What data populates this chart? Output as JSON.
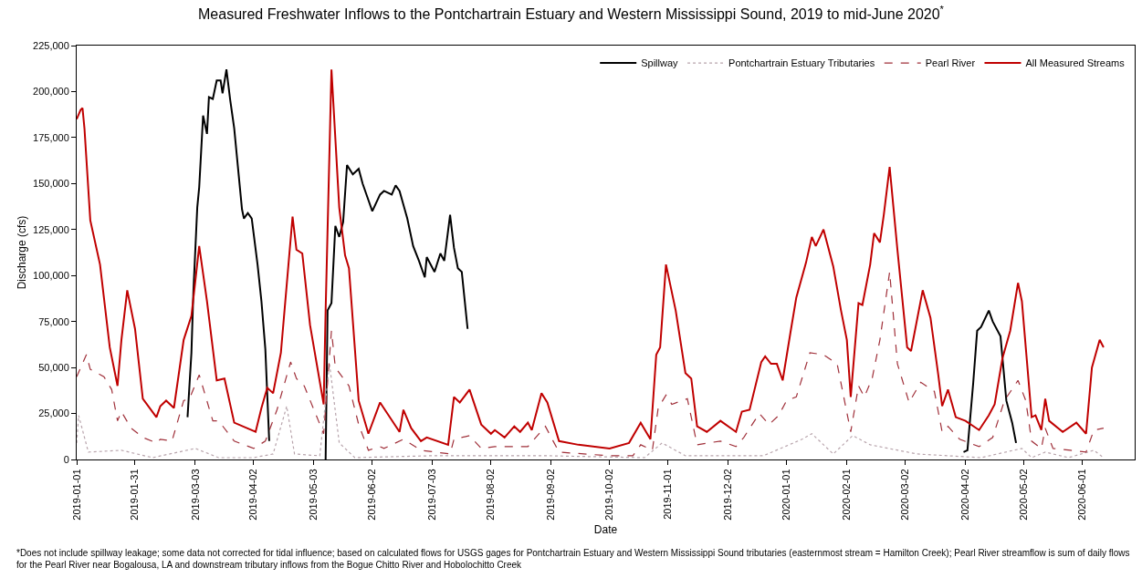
{
  "chart_data": {
    "type": "line",
    "title": "Measured Freshwater Inflows to the Pontchartrain Estuary and Western Mississippi Sound, 2019 to mid-June 2020$^{*}$",
    "xlabel": "Date",
    "ylabel": "Discharge (cfs)",
    "xlim": [
      "2019-01-01",
      "2020-06-28"
    ],
    "xticks": [
      "2019-01-01",
      "2019-01-31",
      "2019-03-03",
      "2019-04-02",
      "2019-05-03",
      "2019-06-02",
      "2019-07-03",
      "2019-08-02",
      "2019-09-02",
      "2019-10-02",
      "2019-11-01",
      "2019-12-02",
      "2020-01-01",
      "2020-02-01",
      "2020-03-02",
      "2020-04-02",
      "2020-05-02",
      "2020-06-01"
    ],
    "ylim": [
      0,
      225000
    ],
    "yticks": [
      {
        "value": 0,
        "label": "0"
      },
      {
        "value": 25000,
        "label": "25,000"
      },
      {
        "value": 50000,
        "label": "50,000"
      },
      {
        "value": 75000,
        "label": "75,000"
      },
      {
        "value": 100000,
        "label": "100,000"
      },
      {
        "value": 125000,
        "label": "125,000"
      },
      {
        "value": 150000,
        "label": "150,000"
      },
      {
        "value": 175000,
        "label": "175,000"
      },
      {
        "value": 200000,
        "label": "200,000"
      },
      {
        "value": 225000,
        "label": "225,000"
      }
    ],
    "grid": false,
    "legend": "top right",
    "annotations": [
      "*Does not include spillway leakage; some data not corrected for tidal influence; based on calculated flows for USGS gages for Pontchartrain Estuary and Western Mississippi Sound tributaries (easternmost stream = Hamilton Creek); Pearl River streamflow is sum of daily flows for the Pearl River near Bogalousa, LA and downstream tributary inflows from the Bogue Chitto River and Hobolochitto Creek"
    ],
    "series": [
      {
        "name": "Spillway",
        "color": "#000000",
        "line_style": "solid",
        "x": [
          "2019-02-27",
          "2019-03-01",
          "2019-03-02",
          "2019-03-04",
          "2019-03-05",
          "2019-03-07",
          "2019-03-09",
          "2019-03-10",
          "2019-03-12",
          "2019-03-14",
          "2019-03-16",
          "2019-03-17",
          "2019-03-19",
          "2019-03-21",
          "2019-03-23",
          "2019-03-27",
          "2019-03-28",
          "2019-03-30",
          "2019-04-01",
          "2019-04-04",
          "2019-04-06",
          "2019-04-08",
          "2019-04-10",
          "2019-04-25",
          "2019-05-09",
          "2019-05-10",
          "2019-05-12",
          "2019-05-14",
          "2019-05-16",
          "2019-05-18",
          "2019-05-20",
          "2019-05-23",
          "2019-05-26",
          "2019-05-28",
          "2019-05-31",
          "2019-06-02",
          "2019-06-06",
          "2019-06-08",
          "2019-06-12",
          "2019-06-14",
          "2019-06-16",
          "2019-06-20",
          "2019-06-23",
          "2019-06-26",
          "2019-06-29",
          "2019-06-30",
          "2019-07-04",
          "2019-07-07",
          "2019-07-09",
          "2019-07-12",
          "2019-07-14",
          "2019-07-16",
          "2019-07-18",
          "2019-07-21",
          "2019-12-01",
          "2020-04-01",
          "2020-04-03",
          "2020-04-06",
          "2020-04-08",
          "2020-04-10",
          "2020-04-14",
          "2020-04-16",
          "2020-04-20",
          "2020-04-23",
          "2020-04-26",
          "2020-04-28"
        ],
        "values": [
          23000,
          58000,
          91000,
          137000,
          148000,
          187000,
          177000,
          197000,
          196000,
          206000,
          206000,
          199000,
          212000,
          195000,
          180000,
          136000,
          131000,
          134000,
          131000,
          106000,
          86000,
          60000,
          10000,
          null,
          0,
          81000,
          85000,
          127000,
          121000,
          129000,
          160000,
          155000,
          158000,
          150000,
          141000,
          135000,
          144000,
          146000,
          144000,
          149000,
          146000,
          131000,
          116000,
          108000,
          99000,
          110000,
          102000,
          112000,
          108000,
          133000,
          115000,
          104000,
          102000,
          71000,
          null,
          4000,
          5000,
          42000,
          70000,
          72000,
          81000,
          75000,
          67000,
          32000,
          20000,
          9000
        ]
      },
      {
        "name": "Pontchartrain Estuary Tributaries",
        "color": "#b8a4ac",
        "line_style": "dotted",
        "x": [
          "2019-01-01",
          "2019-01-02",
          "2019-01-07",
          "2019-01-24",
          "2019-02-09",
          "2019-03-03",
          "2019-03-15",
          "2019-04-02",
          "2019-04-12",
          "2019-04-19",
          "2019-04-23",
          "2019-05-06",
          "2019-05-11",
          "2019-05-16",
          "2019-05-24",
          "2019-07-01",
          "2019-09-01",
          "2019-10-20",
          "2019-10-29",
          "2019-11-10",
          "2019-12-20",
          "2020-01-09",
          "2020-01-14",
          "2020-01-25",
          "2020-02-04",
          "2020-02-13",
          "2020-03-08",
          "2020-04-10",
          "2020-05-01",
          "2020-05-06",
          "2020-05-13",
          "2020-05-25",
          "2020-06-07",
          "2020-06-12"
        ],
        "values": [
          9000,
          24000,
          4000,
          5000,
          1000,
          6000,
          1000,
          1000,
          3000,
          29000,
          3000,
          2000,
          52000,
          9000,
          1000,
          2000,
          2000,
          1000,
          9000,
          2000,
          2000,
          11000,
          14000,
          3000,
          13000,
          8000,
          3000,
          1000,
          6000,
          1000,
          4000,
          1000,
          5000,
          1000
        ]
      },
      {
        "name": "Pearl River",
        "color": "#a0303a",
        "line_style": "dashed",
        "x": [
          "2019-01-01",
          "2019-01-06",
          "2019-01-08",
          "2019-01-15",
          "2019-01-19",
          "2019-01-22",
          "2019-01-24",
          "2019-01-29",
          "2019-02-04",
          "2019-02-11",
          "2019-02-13",
          "2019-02-19",
          "2019-02-25",
          "2019-02-28",
          "2019-03-05",
          "2019-03-12",
          "2019-03-15",
          "2019-03-23",
          "2019-04-02",
          "2019-04-08",
          "2019-04-14",
          "2019-04-21",
          "2019-04-24",
          "2019-04-28",
          "2019-05-08",
          "2019-05-12",
          "2019-05-14",
          "2019-05-21",
          "2019-05-26",
          "2019-05-31",
          "2019-06-06",
          "2019-06-08",
          "2019-06-18",
          "2019-06-27",
          "2019-07-12",
          "2019-07-14",
          "2019-07-22",
          "2019-07-28",
          "2019-08-04",
          "2019-08-21",
          "2019-08-30",
          "2019-09-06",
          "2019-10-02",
          "2019-10-14",
          "2019-10-18",
          "2019-10-24",
          "2019-10-27",
          "2019-10-31",
          "2019-11-03",
          "2019-11-11",
          "2019-11-16",
          "2019-11-28",
          "2019-12-06",
          "2019-12-10",
          "2019-12-18",
          "2019-12-23",
          "2019-12-28",
          "2020-01-01",
          "2020-01-06",
          "2020-01-13",
          "2020-01-20",
          "2020-01-27",
          "2020-02-03",
          "2020-02-07",
          "2020-02-10",
          "2020-02-14",
          "2020-02-18",
          "2020-02-23",
          "2020-02-27",
          "2020-03-04",
          "2020-03-10",
          "2020-03-17",
          "2020-03-21",
          "2020-03-24",
          "2020-03-30",
          "2020-04-09",
          "2020-04-16",
          "2020-04-22",
          "2020-04-29",
          "2020-05-03",
          "2020-05-06",
          "2020-05-11",
          "2020-05-13",
          "2020-05-17",
          "2020-05-26",
          "2020-06-03",
          "2020-06-07",
          "2020-06-12"
        ],
        "values": [
          45000,
          57000,
          49000,
          45000,
          38000,
          21000,
          26000,
          17000,
          12000,
          9000,
          11000,
          10000,
          32000,
          33000,
          46000,
          21000,
          21000,
          10000,
          6000,
          10000,
          27000,
          53000,
          44000,
          40000,
          14000,
          70000,
          50000,
          40000,
          19000,
          5000,
          7000,
          6000,
          11000,
          5000,
          3000,
          11000,
          13000,
          6000,
          7000,
          7000,
          18000,
          4000,
          2000,
          2000,
          8000,
          5000,
          28000,
          35000,
          30000,
          33000,
          8000,
          10000,
          7000,
          12000,
          25000,
          19000,
          24000,
          32000,
          34000,
          58000,
          57000,
          52000,
          15000,
          40000,
          34000,
          44000,
          65000,
          102000,
          52000,
          31000,
          42000,
          37000,
          15000,
          18000,
          11000,
          7000,
          12000,
          32000,
          43000,
          32000,
          10000,
          6000,
          17000,
          6000,
          5000,
          4000,
          16000,
          17000
        ]
      },
      {
        "name": "All Measured Streams",
        "color": "#c00000",
        "line_style": "solid",
        "x": [
          "2019-01-01",
          "2019-01-03",
          "2019-01-04",
          "2019-01-05",
          "2019-01-08",
          "2019-01-13",
          "2019-01-18",
          "2019-01-22",
          "2019-01-24",
          "2019-01-27",
          "2019-01-31",
          "2019-02-04",
          "2019-02-11",
          "2019-02-13",
          "2019-02-16",
          "2019-02-20",
          "2019-02-25",
          "2019-03-01",
          "2019-03-05",
          "2019-03-09",
          "2019-03-14",
          "2019-03-18",
          "2019-03-23",
          "2019-04-03",
          "2019-04-06",
          "2019-04-09",
          "2019-04-12",
          "2019-04-16",
          "2019-04-22",
          "2019-04-24",
          "2019-04-27",
          "2019-05-01",
          "2019-05-08",
          "2019-05-09",
          "2019-05-12",
          "2019-05-16",
          "2019-05-19",
          "2019-05-21",
          "2019-05-26",
          "2019-05-31",
          "2019-06-06",
          "2019-06-16",
          "2019-06-18",
          "2019-06-22",
          "2019-06-27",
          "2019-06-30",
          "2019-07-11",
          "2019-07-14",
          "2019-07-17",
          "2019-07-22",
          "2019-07-28",
          "2019-08-02",
          "2019-08-04",
          "2019-08-09",
          "2019-08-14",
          "2019-08-17",
          "2019-08-21",
          "2019-08-23",
          "2019-08-28",
          "2019-08-31",
          "2019-09-06",
          "2019-09-16",
          "2019-10-02",
          "2019-10-12",
          "2019-10-18",
          "2019-10-23",
          "2019-10-26",
          "2019-10-28",
          "2019-10-31",
          "2019-11-05",
          "2019-11-10",
          "2019-11-13",
          "2019-11-16",
          "2019-11-21",
          "2019-11-28",
          "2019-12-06",
          "2019-12-09",
          "2019-12-13",
          "2019-12-19",
          "2019-12-21",
          "2019-12-24",
          "2019-12-27",
          "2019-12-30",
          "2020-01-03",
          "2020-01-06",
          "2020-01-11",
          "2020-01-14",
          "2020-01-16",
          "2020-01-20",
          "2020-01-25",
          "2020-01-29",
          "2020-02-01",
          "2020-02-03",
          "2020-02-07",
          "2020-02-09",
          "2020-02-13",
          "2020-02-15",
          "2020-02-18",
          "2020-02-20",
          "2020-02-23",
          "2020-02-27",
          "2020-03-03",
          "2020-03-05",
          "2020-03-11",
          "2020-03-15",
          "2020-03-19",
          "2020-03-21",
          "2020-03-24",
          "2020-03-28",
          "2020-04-02",
          "2020-04-09",
          "2020-04-14",
          "2020-04-17",
          "2020-04-21",
          "2020-04-25",
          "2020-04-29",
          "2020-05-01",
          "2020-05-06",
          "2020-05-08",
          "2020-05-11",
          "2020-05-13",
          "2020-05-15",
          "2020-05-22",
          "2020-05-29",
          "2020-06-03",
          "2020-06-06",
          "2020-06-10",
          "2020-06-12"
        ],
        "values": [
          185000,
          190000,
          191000,
          180000,
          130000,
          106000,
          61000,
          40000,
          65000,
          92000,
          71000,
          33000,
          23000,
          29000,
          32000,
          28000,
          65000,
          78000,
          116000,
          86000,
          43000,
          44000,
          20000,
          15000,
          28000,
          39000,
          36000,
          58000,
          132000,
          114000,
          112000,
          73000,
          30000,
          81000,
          212000,
          137000,
          111000,
          104000,
          32000,
          14000,
          31000,
          15000,
          27000,
          17000,
          10000,
          12000,
          8000,
          34000,
          31000,
          38000,
          19000,
          14000,
          16000,
          12000,
          18000,
          15000,
          20000,
          16000,
          36000,
          31000,
          10000,
          8000,
          6000,
          9000,
          20000,
          11000,
          57000,
          61000,
          106000,
          81000,
          47000,
          44000,
          18000,
          15000,
          21000,
          15000,
          26000,
          27000,
          53000,
          56000,
          52000,
          52000,
          43000,
          69000,
          88000,
          107000,
          121000,
          116000,
          125000,
          105000,
          81000,
          65000,
          34000,
          85000,
          84000,
          106000,
          123000,
          118000,
          133000,
          159000,
          114000,
          61000,
          59000,
          92000,
          77000,
          46000,
          29000,
          38000,
          23000,
          21000,
          16000,
          24000,
          30000,
          55000,
          70000,
          96000,
          86000,
          23000,
          24000,
          16000,
          33000,
          21000,
          15000,
          20000,
          14000,
          50000,
          65000,
          61000
        ]
      }
    ]
  }
}
